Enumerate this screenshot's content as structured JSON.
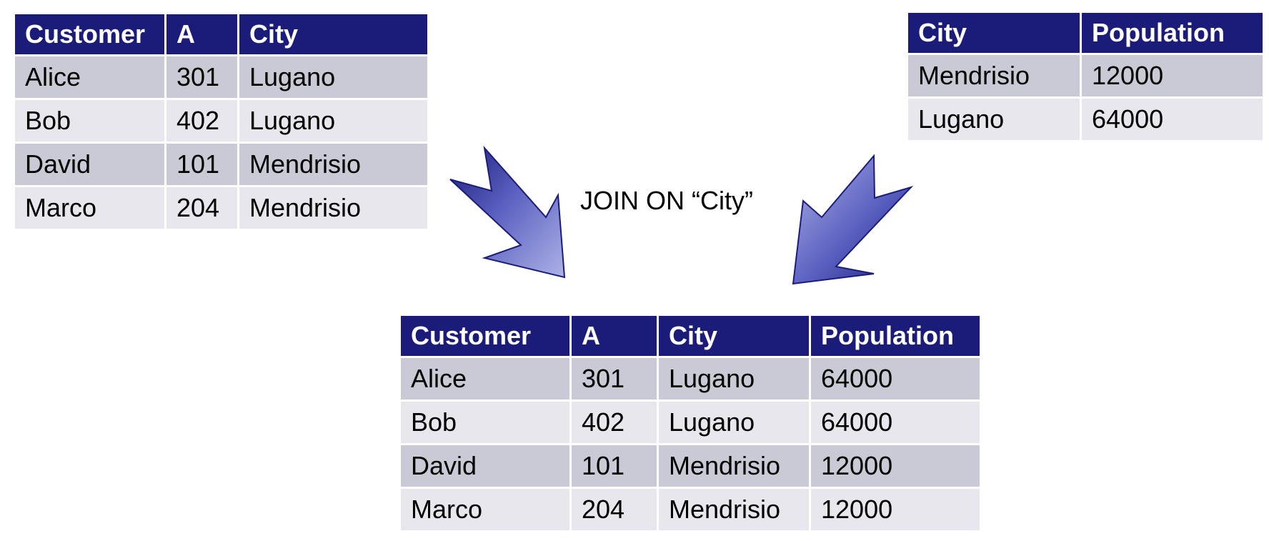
{
  "join_label": "JOIN ON “City”",
  "colors": {
    "header": "#1b1c7a",
    "row_dark": "#c9cad6",
    "row_light": "#e7e7ed",
    "arrow_dark": "#1b1c7a",
    "arrow_light": "#a6aae0"
  },
  "left_table": {
    "headers": [
      "Customer",
      "A",
      "City"
    ],
    "rows": [
      [
        "Alice",
        "301",
        "Lugano"
      ],
      [
        "Bob",
        "402",
        "Lugano"
      ],
      [
        "David",
        "101",
        "Mendrisio"
      ],
      [
        "Marco",
        "204",
        "Mendrisio"
      ]
    ]
  },
  "right_table": {
    "headers": [
      "City",
      "Population"
    ],
    "rows": [
      [
        "Mendrisio",
        "12000"
      ],
      [
        "Lugano",
        "64000"
      ]
    ]
  },
  "result_table": {
    "headers": [
      "Customer",
      "A",
      "City",
      "Population"
    ],
    "rows": [
      [
        "Alice",
        "301",
        "Lugano",
        "64000"
      ],
      [
        "Bob",
        "402",
        "Lugano",
        "64000"
      ],
      [
        "David",
        "101",
        "Mendrisio",
        "12000"
      ],
      [
        "Marco",
        "204",
        "Mendrisio",
        "12000"
      ]
    ]
  }
}
